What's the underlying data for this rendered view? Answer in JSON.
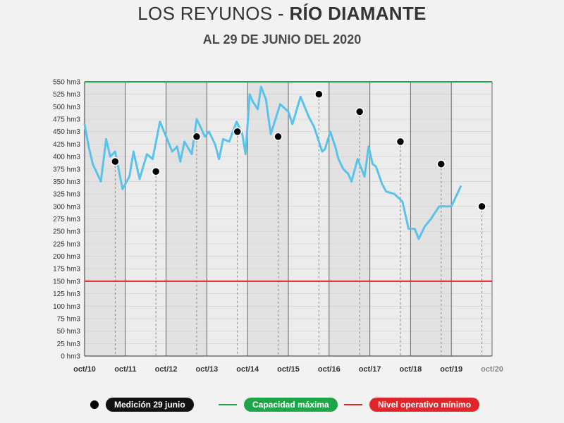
{
  "title_prefix": "LOS REYUNOS - ",
  "title_bold": "RÍO DIAMANTE",
  "subtitle": "AL 29 DE JUNIO DEL 2020",
  "colors": {
    "series": "#5bc3e9",
    "capacity": "#1ea54a",
    "minimum": "#e0252b",
    "marker": "#000000",
    "band_dark": "#e2e2e2",
    "band_light": "#ececec"
  },
  "legend": {
    "marker_label": "Medición 29 junio",
    "capacity_label": "Capacidad máxima",
    "minimum_label": "Nivel operativo mínimo"
  },
  "chart_data": {
    "type": "line",
    "title": "LOS REYUNOS - RÍO DIAMANTE",
    "subtitle": "AL 29 DE JUNIO DEL 2020",
    "xlabel": "",
    "ylabel": "",
    "x_ticks": [
      "oct/10",
      "oct/11",
      "oct/12",
      "oct/13",
      "oct/14",
      "oct/15",
      "oct/16",
      "oct/17",
      "oct/18",
      "oct/19",
      "oct/20"
    ],
    "y_ticks": [
      "0 hm3",
      "25 hm3",
      "50 hm3",
      "75 hm3",
      "100 hm3",
      "125 hm3",
      "150 hm3",
      "175 hm3",
      "200 hm3",
      "225 hm3",
      "250 hm3",
      "275 hm3",
      "300 hm3",
      "325 hm3",
      "350 hm3",
      "375 hm3",
      "400 hm3",
      "425 hm3",
      "450 hm3",
      "475 hm3",
      "500 hm3",
      "525 hm3",
      "550 hm3"
    ],
    "ylim": [
      0,
      550
    ],
    "xlim": [
      2010.75,
      2020.75
    ],
    "series": [
      {
        "x": [
          2010.75,
          2010.85,
          2010.95,
          2011.15,
          2011.28,
          2011.38,
          2011.5,
          2011.68,
          2011.85,
          2011.95,
          2012.1,
          2012.28,
          2012.42,
          2012.6,
          2012.75,
          2012.9,
          2013.02,
          2013.1,
          2013.2,
          2013.38,
          2013.5,
          2013.62,
          2013.7,
          2013.8,
          2013.95,
          2014.05,
          2014.15,
          2014.3,
          2014.48,
          2014.62,
          2014.7,
          2014.8,
          2014.88,
          2015.0,
          2015.08,
          2015.2,
          2015.32,
          2015.55,
          2015.75,
          2015.85,
          2016.05,
          2016.25,
          2016.38,
          2016.58,
          2016.65,
          2016.78,
          2016.9,
          2016.98,
          2017.1,
          2017.22,
          2017.3,
          2017.45,
          2017.62,
          2017.72,
          2017.82,
          2017.9,
          2018.05,
          2018.15,
          2018.35,
          2018.55,
          2018.7,
          2018.85,
          2018.95,
          2019.1,
          2019.25,
          2019.45,
          2019.75,
          2019.98
        ],
        "y": [
          465,
          420,
          385,
          350,
          435,
          400,
          410,
          335,
          360,
          410,
          355,
          405,
          395,
          470,
          440,
          410,
          420,
          390,
          430,
          405,
          475,
          455,
          440,
          450,
          425,
          395,
          435,
          430,
          470,
          445,
          405,
          525,
          510,
          495,
          540,
          515,
          445,
          505,
          490,
          465,
          520,
          480,
          460,
          410,
          415,
          450,
          420,
          395,
          375,
          365,
          350,
          395,
          360,
          420,
          385,
          380,
          345,
          330,
          325,
          310,
          255,
          255,
          235,
          260,
          275,
          300,
          300,
          340
        ]
      }
    ],
    "markers": {
      "name": "Medición 29 junio",
      "x": [
        2011.5,
        2012.5,
        2013.5,
        2014.5,
        2015.5,
        2016.5,
        2017.5,
        2018.5,
        2019.5,
        2020.5
      ],
      "y": [
        390,
        370,
        440,
        450,
        440,
        525,
        490,
        430,
        385,
        300
      ]
    },
    "reference_lines": [
      {
        "name": "Capacidad máxima",
        "y": 550
      },
      {
        "name": "Nivel operativo mínimo",
        "y": 150
      }
    ],
    "grid": true,
    "legend_position": "bottom"
  }
}
